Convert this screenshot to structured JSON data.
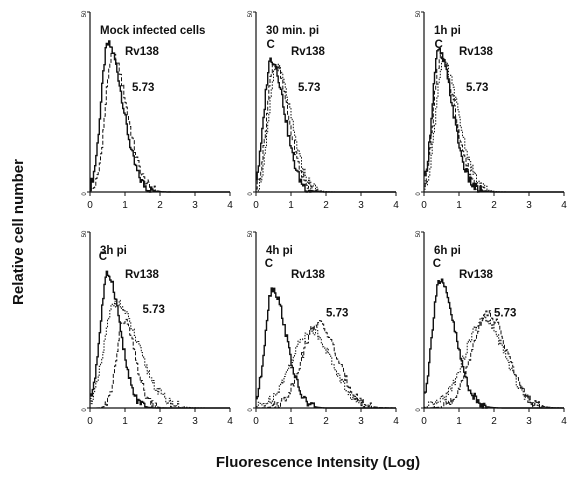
{
  "chart_data": {
    "type": "line",
    "ylabel": "Relative cell number",
    "xlabel": "Fluorescence Intensity (Log)",
    "x_ticks": [
      "0",
      "1",
      "2",
      "3",
      "4"
    ],
    "y_ticks": [
      "0",
      "50"
    ],
    "xlim": [
      0,
      4
    ],
    "ylim": [
      0,
      50
    ],
    "panels": [
      {
        "title": "Mock infected cells",
        "labels": [
          {
            "text": "Rv138",
            "x": 1.0,
            "y": 38
          },
          {
            "text": "5.73",
            "x": 1.2,
            "y": 28
          }
        ],
        "series": [
          {
            "name": "Rv138",
            "peak": 0.5,
            "height": 41,
            "sl": 0.2,
            "sr": 0.42
          },
          {
            "name": "5.73",
            "peak": 0.62,
            "height": 38,
            "sl": 0.2,
            "sr": 0.42
          }
        ]
      },
      {
        "title": "30 min. pi",
        "labels": [
          {
            "text": "C",
            "x": 0.3,
            "y": 40
          },
          {
            "text": "Rv138",
            "x": 1.0,
            "y": 38
          },
          {
            "text": "5.73",
            "x": 1.2,
            "y": 28
          }
        ],
        "series": [
          {
            "name": "C",
            "peak": 0.42,
            "height": 37,
            "sl": 0.2,
            "sr": 0.38
          },
          {
            "name": "Rv138",
            "peak": 0.5,
            "height": 36,
            "sl": 0.2,
            "sr": 0.4
          },
          {
            "name": "5.73",
            "peak": 0.56,
            "height": 35,
            "sl": 0.2,
            "sr": 0.42
          }
        ]
      },
      {
        "title": "1h pi",
        "labels": [
          {
            "text": "C",
            "x": 0.3,
            "y": 40
          },
          {
            "text": "Rv138",
            "x": 1.0,
            "y": 38
          },
          {
            "text": "5.73",
            "x": 1.2,
            "y": 28
          }
        ],
        "series": [
          {
            "name": "C",
            "peak": 0.4,
            "height": 39,
            "sl": 0.18,
            "sr": 0.4
          },
          {
            "name": "Rv138",
            "peak": 0.46,
            "height": 37,
            "sl": 0.2,
            "sr": 0.42
          },
          {
            "name": "5.73",
            "peak": 0.52,
            "height": 36,
            "sl": 0.2,
            "sr": 0.45
          }
        ]
      },
      {
        "title": "3h pi",
        "labels": [
          {
            "text": "C",
            "x": 0.25,
            "y": 42
          },
          {
            "text": "Rv138",
            "x": 1.0,
            "y": 37
          },
          {
            "text": "5.73",
            "x": 1.5,
            "y": 27
          }
        ],
        "series": [
          {
            "name": "C",
            "peak": 0.5,
            "height": 38,
            "sl": 0.22,
            "sr": 0.35
          },
          {
            "name": "Rv138",
            "peak": 0.95,
            "height": 25,
            "sl": 0.2,
            "sr": 0.32
          },
          {
            "name": "5.73",
            "peak": 0.7,
            "height": 30,
            "sl": 0.3,
            "sr": 0.65
          }
        ]
      },
      {
        "title": "4h pi",
        "labels": [
          {
            "text": "C",
            "x": 0.25,
            "y": 40
          },
          {
            "text": "Rv138",
            "x": 1.0,
            "y": 37
          },
          {
            "text": "5.73",
            "x": 2.0,
            "y": 26
          }
        ],
        "series": [
          {
            "name": "C",
            "peak": 0.45,
            "height": 34,
            "sl": 0.2,
            "sr": 0.4
          },
          {
            "name": "Rv138",
            "peak": 1.75,
            "height": 24,
            "sl": 0.45,
            "sr": 0.55
          },
          {
            "name": "5.73",
            "peak": 1.55,
            "height": 22,
            "sl": 0.55,
            "sr": 0.6
          }
        ]
      },
      {
        "title": "6h pi",
        "labels": [
          {
            "text": "C",
            "x": 0.25,
            "y": 40
          },
          {
            "text": "Rv138",
            "x": 1.0,
            "y": 37
          },
          {
            "text": "5.73",
            "x": 2.0,
            "y": 26
          }
        ],
        "series": [
          {
            "name": "C",
            "peak": 0.42,
            "height": 36,
            "sl": 0.2,
            "sr": 0.45
          },
          {
            "name": "Rv138",
            "peak": 1.8,
            "height": 27,
            "sl": 0.45,
            "sr": 0.55
          },
          {
            "name": "5.73",
            "peak": 1.7,
            "height": 25,
            "sl": 0.55,
            "sr": 0.6
          }
        ]
      }
    ]
  }
}
